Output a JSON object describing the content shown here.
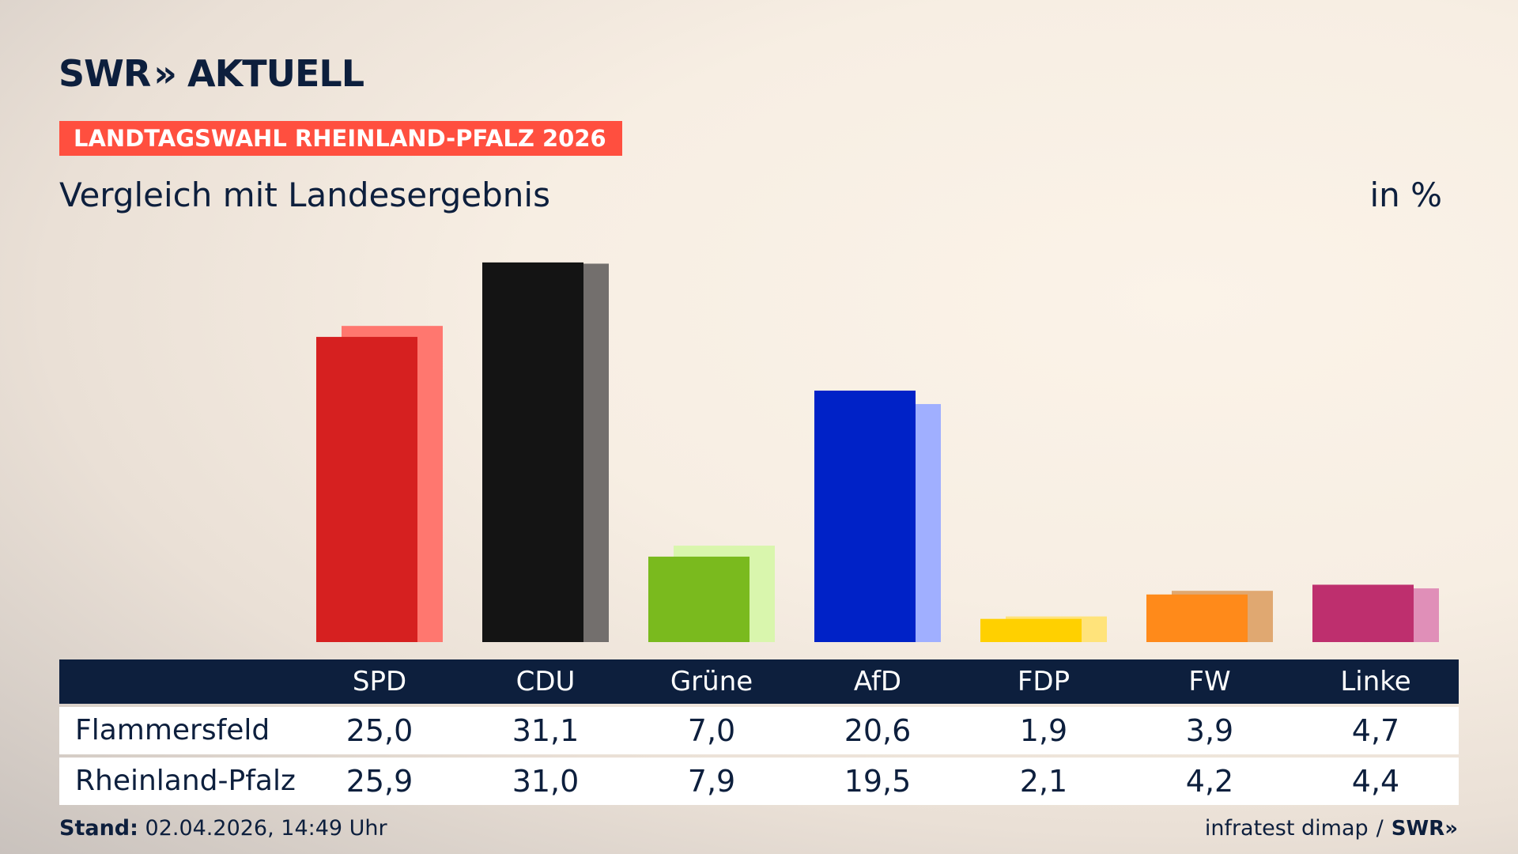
{
  "brand": {
    "name": "SWR",
    "chevron": "»",
    "product": "AKTUELL"
  },
  "kicker": "LANDTAGSWAHL RHEINLAND-PFALZ 2026",
  "subtitle": "Vergleich mit Landesergebnis",
  "unit": "in %",
  "footer": {
    "stand_label": "Stand:",
    "stand_value": "02.04.2026, 14:49 Uhr",
    "source": "infratest dimap",
    "separator": "/",
    "source_brand": "SWR»"
  },
  "chart_data": {
    "type": "bar",
    "categories": [
      "SPD",
      "CDU",
      "Grüne",
      "AfD",
      "FDP",
      "FW",
      "Linke"
    ],
    "series": [
      {
        "name": "Flammersfeld",
        "values": [
          "25,0",
          "31,1",
          "7,0",
          "20,6",
          "1,9",
          "3,9",
          "4,7"
        ]
      },
      {
        "name": "Rheinland-Pfalz",
        "values": [
          "25,9",
          "31,0",
          "7,9",
          "19,5",
          "2,1",
          "4,2",
          "4,4"
        ]
      }
    ],
    "colors": {
      "primary": [
        "#d62020",
        "#141414",
        "#7aba1e",
        "#0022c7",
        "#ffd000",
        "#ff8a1a",
        "#be2f6e"
      ],
      "secondary": [
        "#ff776f",
        "#736f6d",
        "#d9f6ad",
        "#a0afff",
        "#ffe37a",
        "#e0a871",
        "#e08fb8"
      ]
    },
    "ylim": [
      0,
      32
    ],
    "grid": false,
    "legend": "table-below"
  }
}
